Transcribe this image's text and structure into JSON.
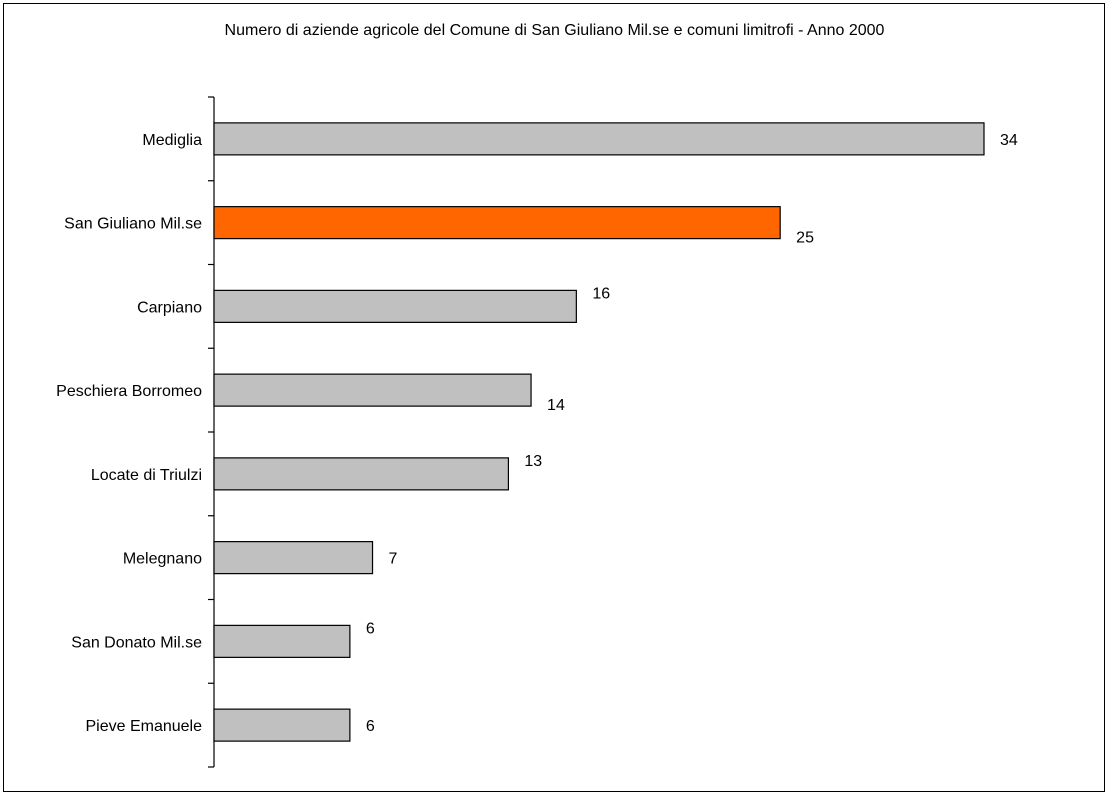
{
  "chart_data": {
    "type": "bar",
    "orientation": "horizontal",
    "title": "Numero di aziende agricole del Comune di San Giuliano Mil.se e comuni limitrofi - Anno 2000",
    "categories": [
      "Mediglia",
      "San Giuliano Mil.se",
      "Carpiano",
      "Peschiera Borromeo",
      "Locate di Triulzi",
      "Melegnano",
      "San Donato Mil.se",
      "Pieve Emanuele"
    ],
    "values": [
      34,
      25,
      16,
      14,
      13,
      7,
      6,
      6
    ],
    "highlight_index": 1,
    "colors": {
      "default": "#c0c0c0",
      "highlight": "#ff6600",
      "stroke": "#000000"
    },
    "xlim": [
      0,
      34
    ],
    "grid": false,
    "legend": "none"
  }
}
